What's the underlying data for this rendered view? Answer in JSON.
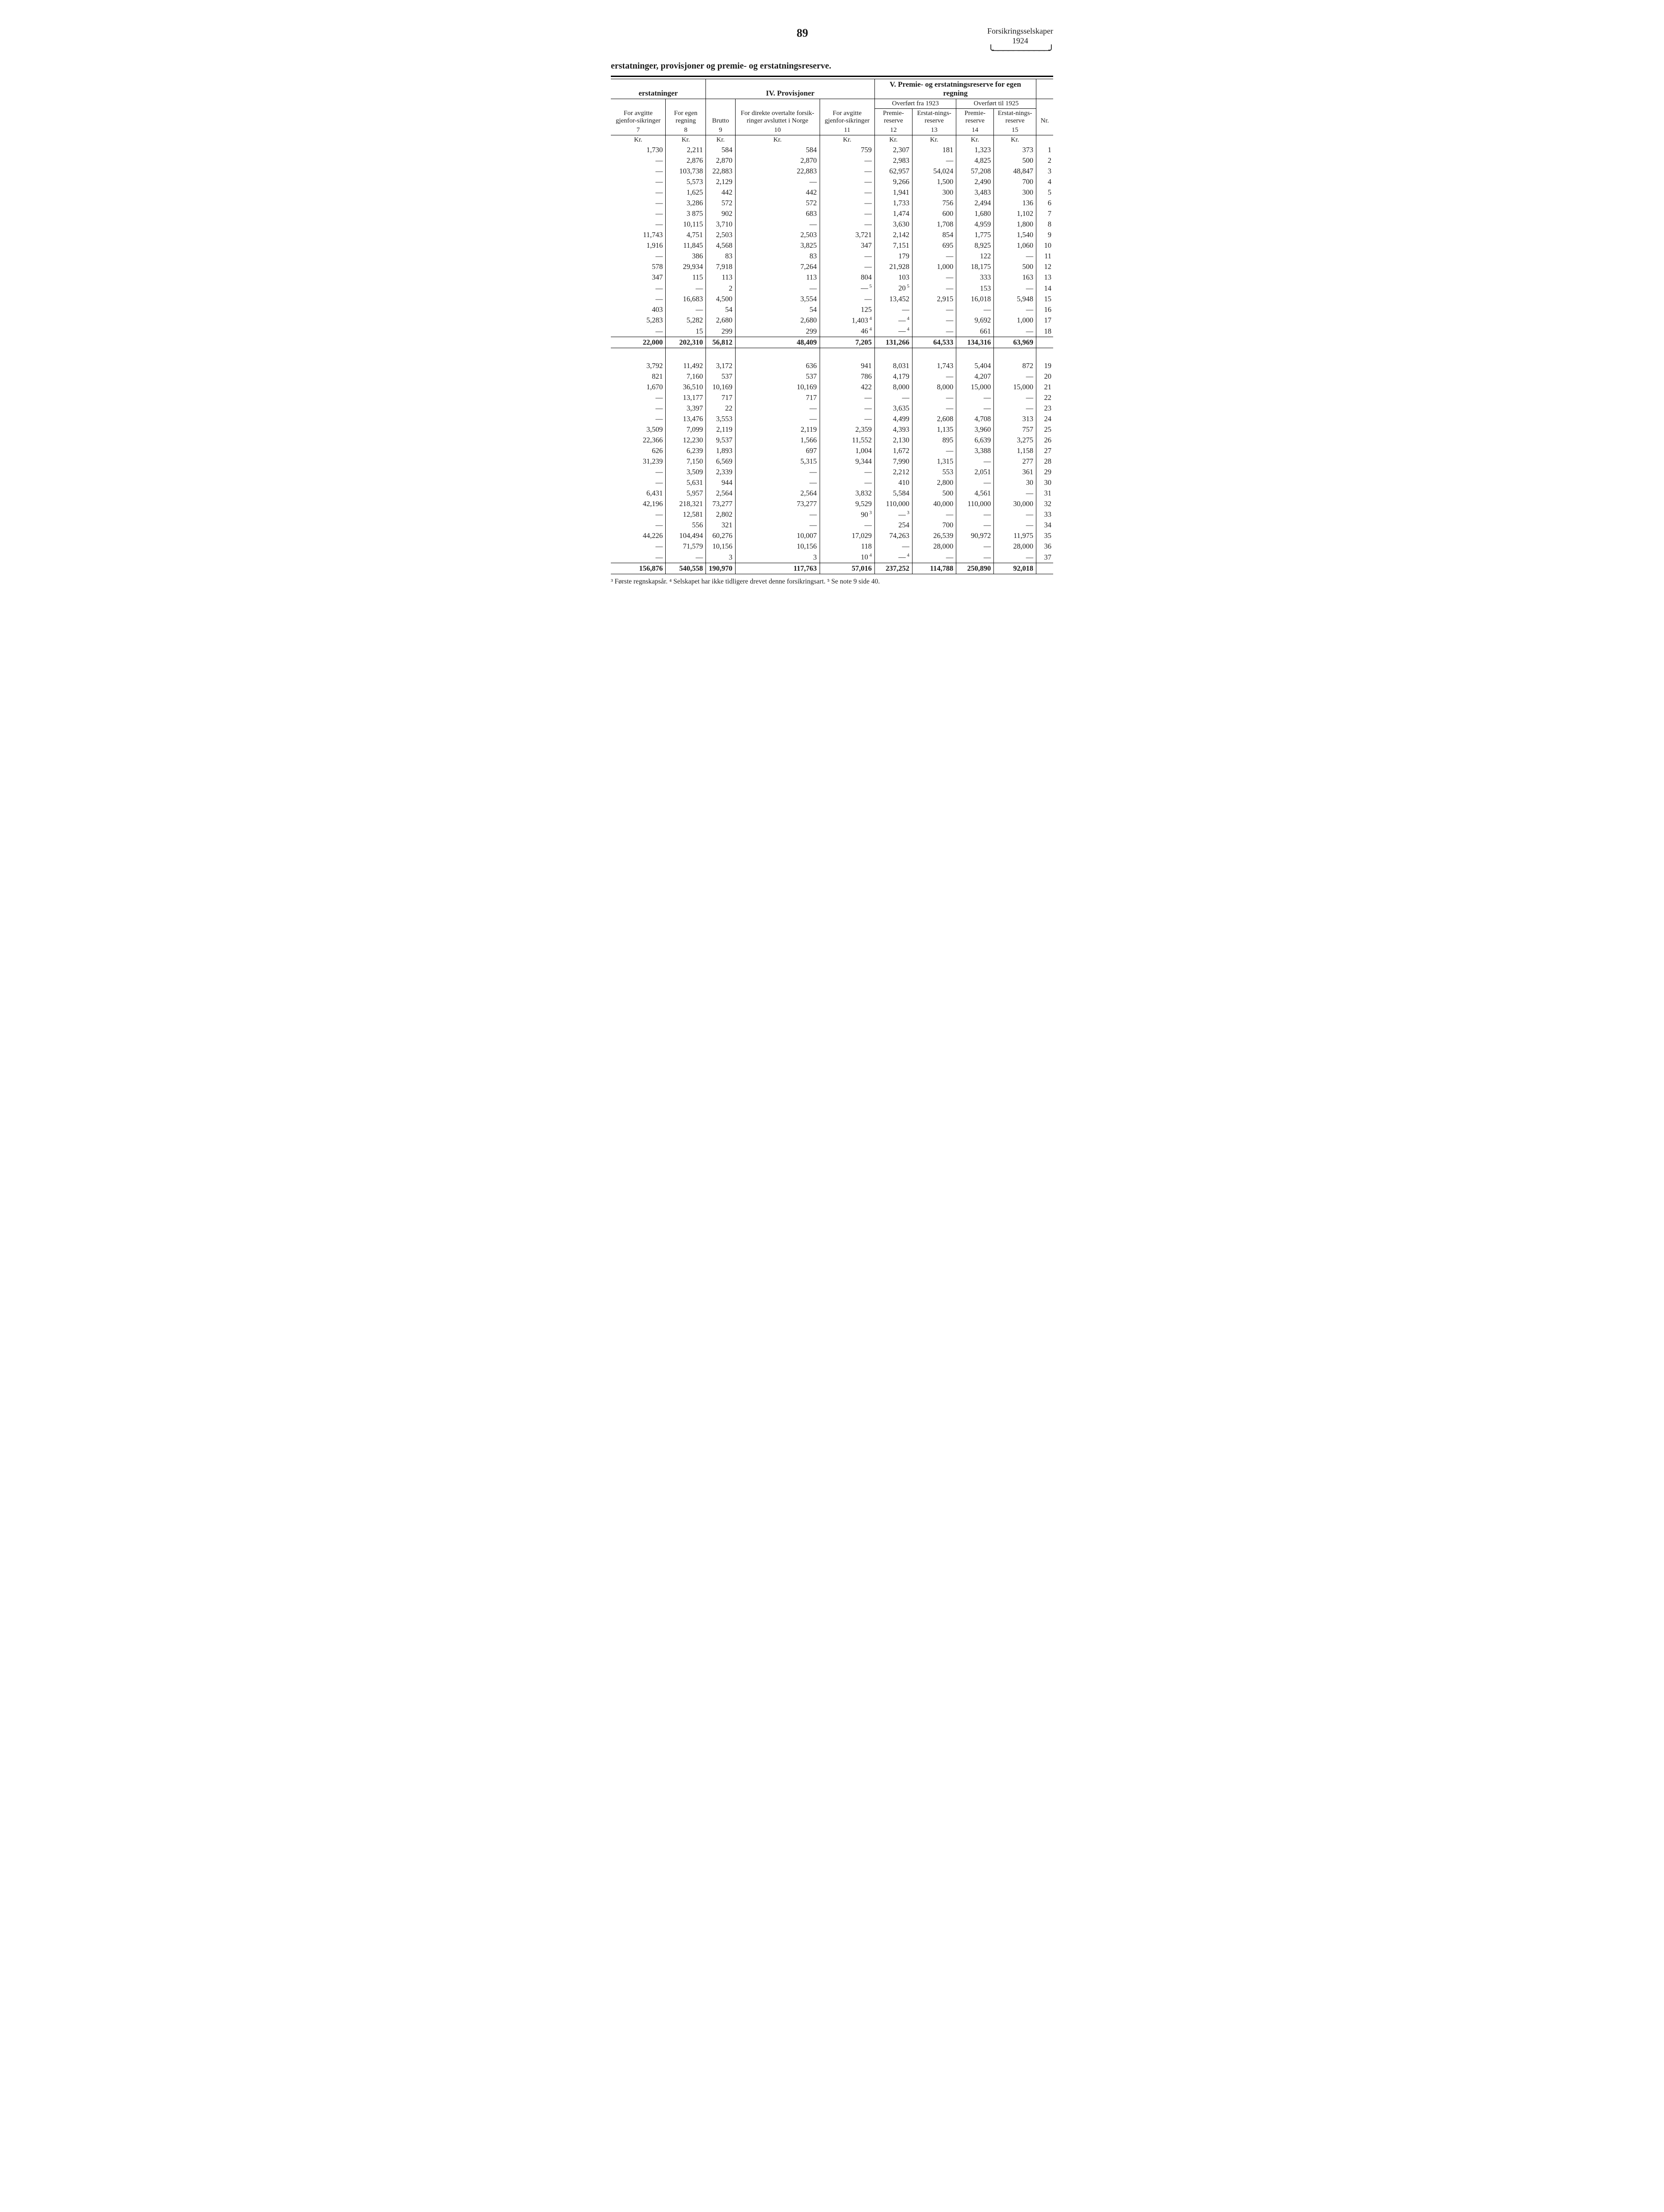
{
  "page_number": "89",
  "doc_title_1": "Forsikringsselskaper",
  "doc_title_2": "1924",
  "running_title": "erstatninger, provisjoner og premie- og erstatningsreserve.",
  "sections": {
    "s1": "erstatninger",
    "s2": "IV.    Provisjoner",
    "s3": "V.   Premie- og erstatningsreserve for egen regning"
  },
  "subheads": {
    "c7": "For avgitte gjenfor-sikringer",
    "c8": "For egen regning",
    "c9": "Brutto",
    "c10": "For direkte overtalte forsik-ringer avsluttet i Norge",
    "c11": "For avgitte gjenfor-sikringer",
    "over1923": "Overført fra 1923",
    "over1925": "Overført til 1925",
    "c12": "Premie-reserve",
    "c13": "Erstat-nings-reserve",
    "c14": "Premie-reserve",
    "c15": "Erstat-nings-reserve",
    "nr": "Nr."
  },
  "colnums": [
    "7",
    "8",
    "9",
    "10",
    "11",
    "12",
    "13",
    "14",
    "15"
  ],
  "unit": "Kr.",
  "rows1": [
    [
      "1,730",
      "2,211",
      "584",
      "584",
      "759",
      "2,307",
      "181",
      "1,323",
      "373",
      "1"
    ],
    [
      "—",
      "2,876",
      "2,870",
      "2,870",
      "—",
      "2,983",
      "—",
      "4,825",
      "500",
      "2"
    ],
    [
      "—",
      "103,738",
      "22,883",
      "22,883",
      "—",
      "62,957",
      "54,024",
      "57,208",
      "48,847",
      "3"
    ],
    [
      "—",
      "5,573",
      "2,129",
      "—",
      "—",
      "9,266",
      "1,500",
      "2,490",
      "700",
      "4"
    ],
    [
      "—",
      "1,625",
      "442",
      "442",
      "—",
      "1,941",
      "300",
      "3,483",
      "300",
      "5"
    ],
    [
      "—",
      "3,286",
      "572",
      "572",
      "—",
      "1,733",
      "756",
      "2,494",
      "136",
      "6"
    ],
    [
      "—",
      "3 875",
      "902",
      "683",
      "—",
      "1,474",
      "600",
      "1,680",
      "1,102",
      "7"
    ],
    [
      "—",
      "10,115",
      "3,710",
      "—",
      "—",
      "3,630",
      "1,708",
      "4,959",
      "1,800",
      "8"
    ],
    [
      "11,743",
      "4,751",
      "2,503",
      "2,503",
      "3,721",
      "2,142",
      "854",
      "1,775",
      "1,540",
      "9"
    ],
    [
      "1,916",
      "11,845",
      "4,568",
      "3,825",
      "347",
      "7,151",
      "695",
      "8,925",
      "1,060",
      "10"
    ],
    [
      "—",
      "386",
      "83",
      "83",
      "—",
      "179",
      "—",
      "122",
      "—",
      "11"
    ],
    [
      "578",
      "29,934",
      "7,918",
      "7,264",
      "—",
      "21,928",
      "1,000",
      "18,175",
      "500",
      "12"
    ],
    [
      "347",
      "115",
      "113",
      "113",
      "804",
      "103",
      "—",
      "333",
      "163",
      "13"
    ],
    [
      "—",
      "—",
      "2",
      "—",
      "—",
      "20",
      "—",
      "153",
      "—",
      "14"
    ],
    [
      "—",
      "16,683",
      "4,500",
      "3,554",
      "—",
      "13,452",
      "2,915",
      "16,018",
      "5,948",
      "15"
    ],
    [
      "403",
      "—",
      "54",
      "54",
      "125",
      "—",
      "—",
      "—",
      "—",
      "16"
    ],
    [
      "5,283",
      "5,282",
      "2,680",
      "2,680",
      "1,403",
      "—",
      "—",
      "9,692",
      "1,000",
      "17"
    ],
    [
      "—",
      "15",
      "299",
      "299",
      "46",
      "—",
      "—",
      "661",
      "—",
      "18"
    ]
  ],
  "totals1": [
    "22,000",
    "202,310",
    "56,812",
    "48,409",
    "7,205",
    "131,266",
    "64,533",
    "134,316",
    "63,969"
  ],
  "rows2": [
    [
      "3,792",
      "11,492",
      "3,172",
      "636",
      "941",
      "8,031",
      "1,743",
      "5,404",
      "872",
      "19"
    ],
    [
      "821",
      "7,160",
      "537",
      "537",
      "786",
      "4,179",
      "—",
      "4,207",
      "—",
      "20"
    ],
    [
      "1,670",
      "36,510",
      "10,169",
      "10,169",
      "422",
      "8,000",
      "8,000",
      "15,000",
      "15,000",
      "21"
    ],
    [
      "—",
      "13,177",
      "717",
      "717",
      "—",
      "—",
      "—",
      "—",
      "—",
      "22"
    ],
    [
      "—",
      "3,397",
      "22",
      "—",
      "—",
      "3,635",
      "—",
      "—",
      "—",
      "23"
    ],
    [
      "—",
      "13,476",
      "3,553",
      "—",
      "—",
      "4,499",
      "2,608",
      "4,708",
      "313",
      "24"
    ],
    [
      "3,509",
      "7,099",
      "2,119",
      "2,119",
      "2,359",
      "4,393",
      "1,135",
      "3,960",
      "757",
      "25"
    ],
    [
      "22,366",
      "12,230",
      "9,537",
      "1,566",
      "11,552",
      "2,130",
      "895",
      "6,639",
      "3,275",
      "26"
    ],
    [
      "626",
      "6,239",
      "1,893",
      "697",
      "1,004",
      "1,672",
      "—",
      "3,388",
      "1,158",
      "27"
    ],
    [
      "31,239",
      "7,150",
      "6,569",
      "5,315",
      "9,344",
      "7,990",
      "1,315",
      "—",
      "277",
      "28"
    ],
    [
      "—",
      "3,509",
      "2,339",
      "—",
      "—",
      "2,212",
      "553",
      "2,051",
      "361",
      "29"
    ],
    [
      "—",
      "5,631",
      "944",
      "—",
      "—",
      "410",
      "2,800",
      "—",
      "30",
      "30"
    ],
    [
      "6,431",
      "5,957",
      "2,564",
      "2,564",
      "3,832",
      "5,584",
      "500",
      "4,561",
      "—",
      "31"
    ],
    [
      "42,196",
      "218,321",
      "73,277",
      "73,277",
      "9,529",
      "110,000",
      "40,000",
      "110,000",
      "30,000",
      "32"
    ],
    [
      "—",
      "12,581",
      "2,802",
      "—",
      "90",
      "—",
      "—",
      "—",
      "—",
      "33"
    ],
    [
      "—",
      "556",
      "321",
      "—",
      "—",
      "254",
      "700",
      "—",
      "—",
      "34"
    ],
    [
      "44,226",
      "104,494",
      "60,276",
      "10,007",
      "17,029",
      "74,263",
      "26,539",
      "90,972",
      "11,975",
      "35"
    ],
    [
      "—",
      "71,579",
      "10,156",
      "10,156",
      "118",
      "—",
      "28,000",
      "—",
      "28,000",
      "36"
    ],
    [
      "—",
      "—",
      "3",
      "3",
      "10",
      "—",
      "—",
      "—",
      "—",
      "37"
    ]
  ],
  "totals2": [
    "156,876",
    "540,558",
    "190,970",
    "117,763",
    "57,016",
    "237,252",
    "114,788",
    "250,890",
    "92,018"
  ],
  "sup_rows1": {
    "14": {
      "11": "5",
      "12": "5"
    },
    "17": {
      "11": "4",
      "12": "4"
    },
    "18": {
      "11": "4",
      "12": "4"
    }
  },
  "sup_rows2": {
    "33": {
      "11": "3",
      "12": "3"
    },
    "37": {
      "11": "4",
      "12": "4"
    }
  },
  "footnotes": "³ Første regnskapsår.   ⁴ Selskapet har ikke tidligere drevet denne forsikringsart.   ⁵ Se note 9 side 40."
}
